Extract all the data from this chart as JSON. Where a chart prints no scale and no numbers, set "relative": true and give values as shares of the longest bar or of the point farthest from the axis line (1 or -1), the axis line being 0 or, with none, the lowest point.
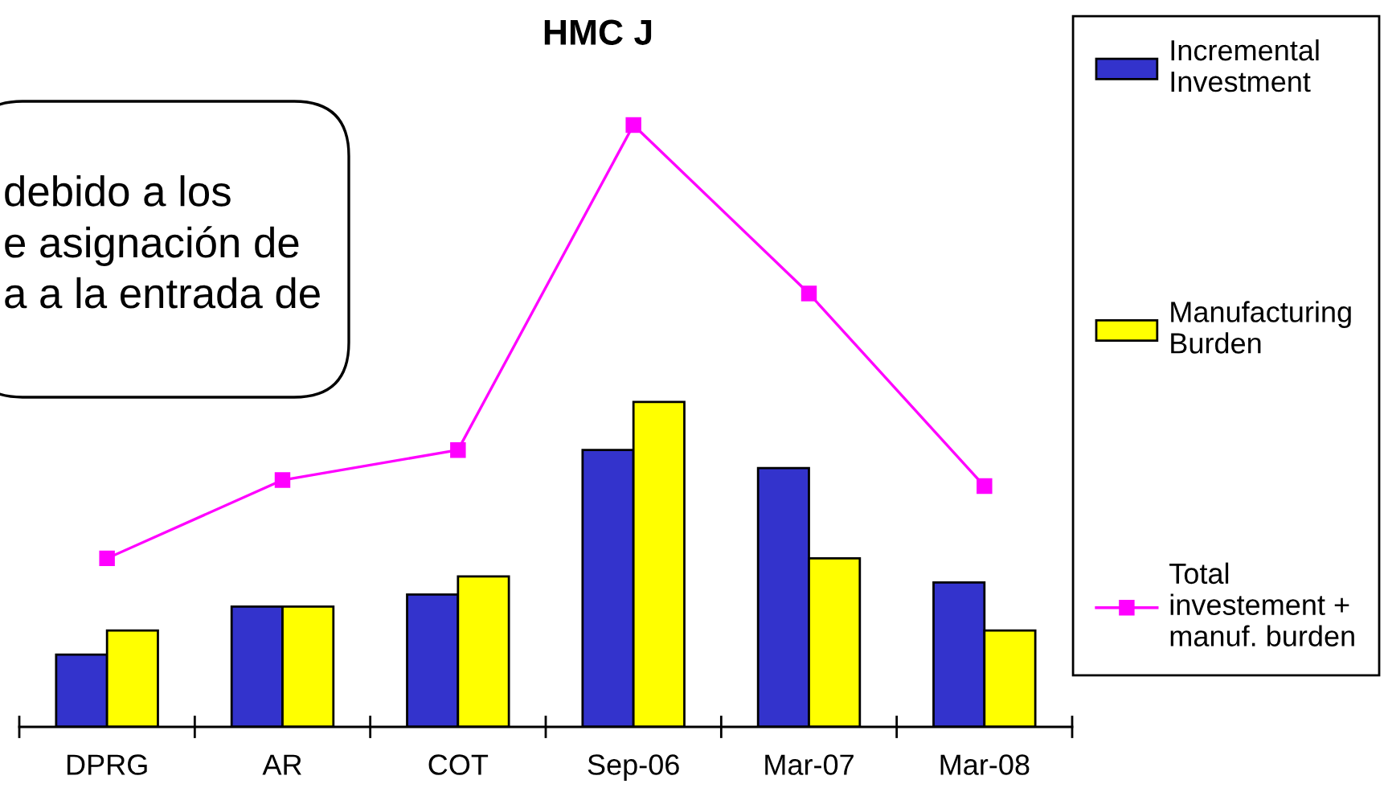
{
  "chart_data": {
    "type": "bar",
    "title": "HMC J",
    "relative": true,
    "categories": [
      "DPRG",
      "AR",
      "COT",
      "Sep-06",
      "Mar-07",
      "Mar-08"
    ],
    "series": [
      {
        "name": "Incremental\nInvestment",
        "color": "#3333cc",
        "values": [
          0.12,
          0.2,
          0.22,
          0.46,
          0.43,
          0.24
        ]
      },
      {
        "name": "Manufacturing\nBurden",
        "color": "#ffff00",
        "values": [
          0.16,
          0.2,
          0.25,
          0.54,
          0.28,
          0.16
        ]
      },
      {
        "type": "line",
        "name": "Total\ninvestement +\nmanuf. burden",
        "color": "#ff00ff",
        "values": [
          0.28,
          0.41,
          0.46,
          1,
          0.72,
          0.4
        ]
      }
    ],
    "marker": "square",
    "legend": "right",
    "annotations": [
      "debido a los\ne asignación de\na a la entrada de"
    ]
  }
}
